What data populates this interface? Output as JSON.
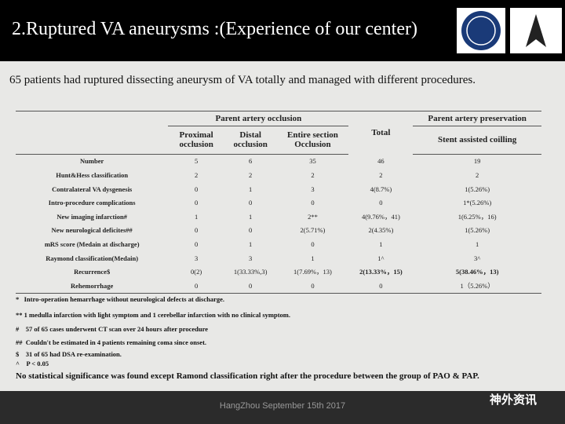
{
  "header": {
    "title": "2.Ruptured VA aneurysms :(Experience of our center)"
  },
  "subtitle": "65 patients had ruptured dissecting aneurysm of  VA totally and managed with different procedures.",
  "table": {
    "group_headers": [
      "Parent artery occlusion",
      "Total",
      "Parent artery preservation"
    ],
    "columns": [
      "Proximal occlusion",
      "Distal occlusion",
      "Entire section Occlusion",
      "Stent assisted coilling"
    ],
    "rows": [
      [
        "Number",
        "5",
        "6",
        "35",
        "46",
        "19"
      ],
      [
        "Hunt&Hess classification",
        "2",
        "2",
        "2",
        "2",
        "2"
      ],
      [
        "Contralateral VA dysgenesis",
        "0",
        "1",
        "3",
        "4(8.7%)",
        "1(5.26%)"
      ],
      [
        "Intro-procedure complications",
        "0",
        "0",
        "0",
        "0",
        "1*(5.26%)"
      ],
      [
        "New imaging infarction#",
        "1",
        "1",
        "2**",
        "4(9.76%，41)",
        "1(6.25%，16)"
      ],
      [
        "New neurological deficites##",
        "0",
        "0",
        "2(5.71%)",
        "2(4.35%)",
        "1(5.26%)"
      ],
      [
        "mRS score (Medain at discharge)",
        "0",
        "1",
        "0",
        "1",
        "1"
      ],
      [
        "Raymond classification(Medain)",
        "3",
        "3",
        "1",
        "1^",
        "3^"
      ],
      [
        "Recurrence$",
        "0(2)",
        "1(33.33%,3)",
        "1(7.69%，13)",
        "2(13.33%，15)",
        "5(38.46%，13)"
      ],
      [
        "Rehemorrhage",
        "0",
        "0",
        "0",
        "0",
        "1（5.26%）"
      ]
    ]
  },
  "footnotes": [
    "*   Intro-operation hemarrhage without neurological defects at discharge.",
    "** 1 medulla infarction with light symptom and 1 cerebellar infarction with no clinical symptom.",
    "#    57 of 65 cases underwent CT scan over 24 hours after procedure",
    "##  Couldn't be estimated in 4 patients remaining coma since onset.",
    "$    31 of 65 had DSA re-examination.",
    "^    P < 0.05"
  ],
  "conclusion": "No statistical significance was found except Ramond classification right after the procedure between the group of PAO & PAP.",
  "footer": "HangZhou September 15th 2017",
  "watermark": "神外资讯"
}
